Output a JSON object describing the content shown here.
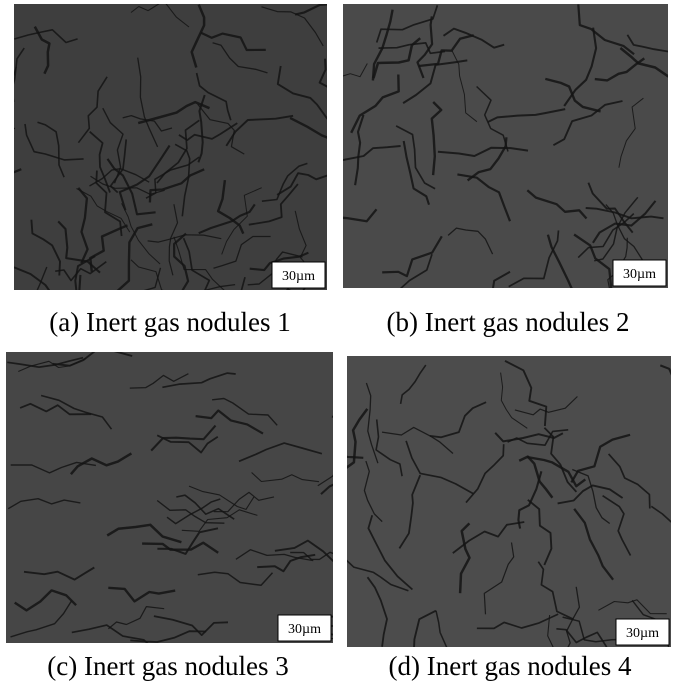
{
  "panels": [
    {
      "caption": "(a) Inert gas nodules 1",
      "scale_label": "30µm"
    },
    {
      "caption": "(b) Inert gas nodules 2",
      "scale_label": "30µm"
    },
    {
      "caption": "(c) Inert gas nodules 3",
      "scale_label": "30µm"
    },
    {
      "caption": "(d) Inert gas nodules 4",
      "scale_label": "30µm"
    }
  ]
}
